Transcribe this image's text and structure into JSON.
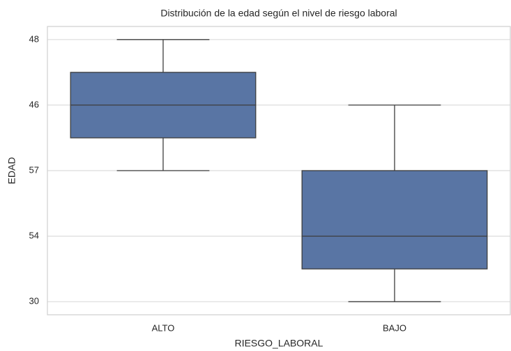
{
  "chart_data": {
    "type": "box",
    "title": "Distribución de la edad según el nivel de riesgo laboral",
    "xlabel": "RIESGO_LABORAL",
    "ylabel": "EDAD",
    "categories": [
      "ALTO",
      "BAJO"
    ],
    "boxes": [
      {
        "whislo": 2,
        "q1": 2.5,
        "med": 3,
        "q3": 3.5,
        "whishi": 4
      },
      {
        "whislo": 0,
        "q1": 0.5,
        "med": 1,
        "q3": 2,
        "whishi": 3
      }
    ],
    "color": "#5975a4",
    "ylim": [
      -0.2,
      4.2
    ],
    "yticks": [
      {
        "value": 0,
        "label": "30"
      },
      {
        "value": 1,
        "label": "54"
      },
      {
        "value": 2,
        "label": "57"
      },
      {
        "value": 3,
        "label": "46"
      },
      {
        "value": 4,
        "label": "48"
      }
    ],
    "grid": true
  }
}
